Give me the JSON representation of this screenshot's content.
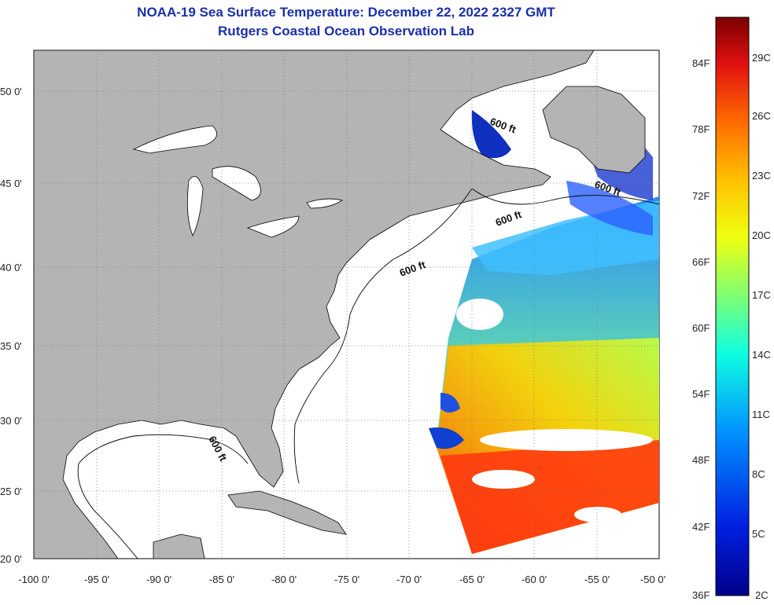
{
  "title": {
    "line1": "NOAA-19 Sea Surface Temperature:  December 22, 2022 2327 GMT",
    "line2": "Rutgers Coastal Ocean Observation Lab"
  },
  "map": {
    "lon_range": [
      -100,
      -50
    ],
    "lat_range": [
      20,
      53
    ],
    "lon_ticks": [
      "-100 0'",
      "-95 0'",
      "-90 0'",
      "-85 0'",
      "-80 0'",
      "-75 0'",
      "-70 0'",
      "-65 0'",
      "-60 0'",
      "-55 0'",
      "-50 0'"
    ],
    "lat_ticks": [
      "50 0'",
      "45 0'",
      "40 0'",
      "35 0'",
      "30 0'",
      "25 0'",
      "20 0'"
    ],
    "land_color": "#b4b4b4",
    "ocean_color": "#ffffff",
    "contour_label": "600 ft",
    "grid": "dotted"
  },
  "colorbar": {
    "f_labels": [
      "84F",
      "78F",
      "72F",
      "66F",
      "60F",
      "54F",
      "48F",
      "42F",
      "36F"
    ],
    "c_labels": [
      "29C",
      "26C",
      "23C",
      "20C",
      "17C",
      "14C",
      "11C",
      "8C",
      "5C",
      "2C"
    ],
    "colors": [
      "#7a0000",
      "#e01010",
      "#ff6a00",
      "#ffc000",
      "#f0ff10",
      "#80ff70",
      "#10ffe0",
      "#0090ff",
      "#0020e0",
      "#00008a"
    ]
  }
}
